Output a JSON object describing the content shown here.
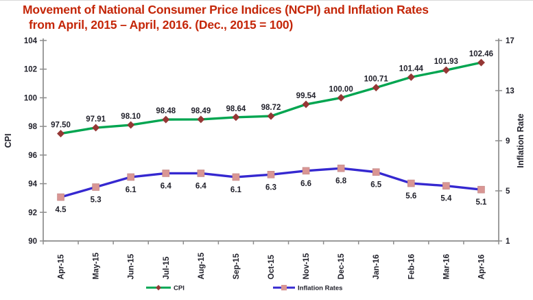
{
  "title": {
    "line1": "Movement of National Consumer Price Indices (NCPI) and Inflation Rates",
    "line2": "from April, 2015 – April, 2016. (Dec., 2015 = 100)",
    "color": "#C42608"
  },
  "chart_data": {
    "type": "line",
    "title": "Movement of National Consumer Price Indices (NCPI) and Inflation Rates from April, 2015 – April, 2016. (Dec., 2015 = 100)",
    "categories": [
      "Apr-15",
      "May-15",
      "Jun-15",
      "Jul-15",
      "Aug-15",
      "Sep-15",
      "Oct-15",
      "Nov-15",
      "Dec-15",
      "Jan-16",
      "Feb-16",
      "Mar-16",
      "Apr-16"
    ],
    "series": [
      {
        "name": "CPI",
        "axis": "left",
        "values": [
          97.5,
          97.91,
          98.1,
          98.48,
          98.49,
          98.64,
          98.72,
          99.54,
          100.0,
          100.71,
          101.44,
          101.93,
          102.46
        ],
        "labels": [
          "97.50",
          "97.91",
          "98.10",
          "98.48",
          "98.49",
          "98.64",
          "98.72",
          "99.54",
          "100.00",
          "100.71",
          "101.44",
          "101.93",
          "102.46"
        ],
        "line_color": "#00A550",
        "marker": "diamond",
        "marker_color": "#953735",
        "label_position": "above"
      },
      {
        "name": "Inflation Rates",
        "axis": "right",
        "values": [
          4.5,
          5.3,
          6.1,
          6.4,
          6.4,
          6.1,
          6.3,
          6.6,
          6.8,
          6.5,
          5.6,
          5.4,
          5.1
        ],
        "labels": [
          "4.5",
          "5.3",
          "6.1",
          "6.4",
          "6.4",
          "6.1",
          "6.3",
          "6.6",
          "6.8",
          "6.5",
          "5.6",
          "5.4",
          "5.1"
        ],
        "line_color": "#3528D0",
        "marker": "square",
        "marker_color": "#D99694",
        "label_position": "below"
      }
    ],
    "left_axis": {
      "title": "CPI",
      "min": 90,
      "max": 104,
      "ticks": [
        90,
        92,
        94,
        96,
        98,
        100,
        102,
        104
      ]
    },
    "right_axis": {
      "title": "Inflation Rate",
      "min": 1,
      "max": 17,
      "ticks": [
        1,
        5,
        9,
        13,
        17
      ]
    },
    "legend": {
      "position": "bottom",
      "items": [
        "CPI",
        "Inflation Rates"
      ]
    },
    "grid": false,
    "axis_color": "#8C8C8C",
    "text_color": "#21212B"
  }
}
